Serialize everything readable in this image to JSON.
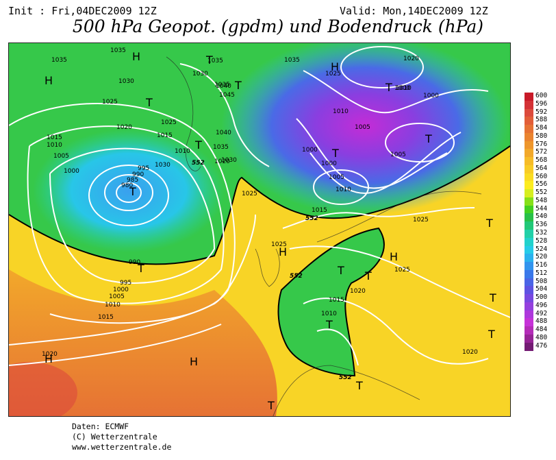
{
  "header": {
    "init": "Init : Fri,04DEC2009 12Z",
    "valid": "Valid: Mon,14DEC2009 12Z",
    "title": "500 hPa Geopot. (gpdm) und Bodendruck (hPa)"
  },
  "map": {
    "isobar_labels": [
      "1035",
      "1035",
      "1030",
      "1025",
      "1020",
      "1015",
      "1010",
      "1005",
      "1000",
      "995",
      "990",
      "985",
      "980",
      "1035",
      "1030",
      "1025",
      "1015",
      "1010",
      "1030",
      "1020",
      "1035",
      "1040",
      "1045",
      "1040",
      "1035",
      "1030",
      "1025",
      "990",
      "995",
      "1000",
      "1005",
      "1010",
      "1015",
      "1020",
      "1035",
      "1025",
      "1010",
      "1005",
      "1000",
      "1000",
      "1005",
      "1010",
      "1015",
      "1020",
      "1000",
      "1010",
      "1005",
      "1000",
      "1025",
      "1025",
      "1020",
      "1015",
      "1010",
      "1025",
      "1020"
    ],
    "contour_552_label": "552",
    "contour_552_labels": [
      "552",
      "552",
      "552",
      "552"
    ],
    "lows": [
      "T",
      "T",
      "T",
      "T",
      "T",
      "T",
      "T",
      "T",
      "T",
      "T",
      "T",
      "T",
      "T",
      "T",
      "T",
      "T",
      "T"
    ],
    "highs": [
      "H",
      "H",
      "H",
      "H",
      "H",
      "H",
      "H"
    ]
  },
  "legend": {
    "values": [
      "600",
      "596",
      "592",
      "588",
      "584",
      "580",
      "576",
      "572",
      "568",
      "564",
      "560",
      "556",
      "552",
      "548",
      "544",
      "540",
      "536",
      "532",
      "528",
      "524",
      "520",
      "516",
      "512",
      "508",
      "504",
      "500",
      "496",
      "492",
      "488",
      "484",
      "480",
      "476"
    ],
    "colors": [
      "#c81a28",
      "#d43236",
      "#dc4a3c",
      "#e25e38",
      "#e67234",
      "#ea8430",
      "#ee962c",
      "#f2a82a",
      "#f6bc28",
      "#f8cc26",
      "#fadc22",
      "#fcec20",
      "#d6ee20",
      "#86e018",
      "#42d020",
      "#28c048",
      "#22c878",
      "#22d0a8",
      "#22d2cc",
      "#26cce8",
      "#2ab2ee",
      "#3294ee",
      "#3a78ea",
      "#4a64e6",
      "#5e52e2",
      "#7848e0",
      "#9440de",
      "#ae38dc",
      "#c632d8",
      "#b42cb8",
      "#962496",
      "#741c74"
    ]
  },
  "footer": {
    "line1": "Daten: ECMWF",
    "line2": "(C) Wetterzentrale",
    "line3": "www.wetterzentrale.de"
  }
}
